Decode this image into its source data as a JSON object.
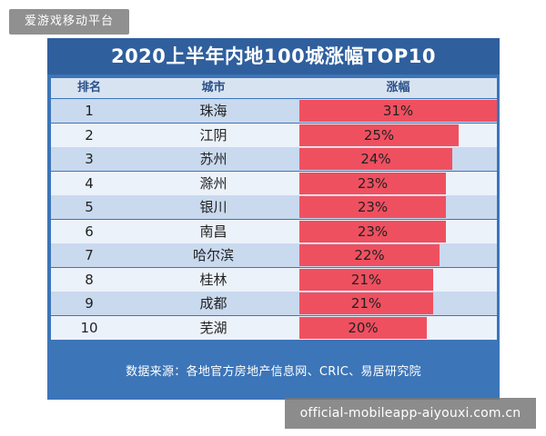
{
  "watermark": {
    "top_left": "爱游戏移动平台",
    "bottom_right": "official-mobileapp-aiyouxi.com.cn"
  },
  "chart_data": {
    "type": "bar",
    "title": "2020上半年内地100城涨幅TOP10",
    "columns": [
      "排名",
      "城市",
      "涨幅"
    ],
    "categories": [
      "珠海",
      "江阴",
      "苏州",
      "滁州",
      "银川",
      "南昌",
      "哈尔滨",
      "桂林",
      "成都",
      "芜湖"
    ],
    "ranks": [
      "1",
      "2",
      "3",
      "4",
      "5",
      "6",
      "7",
      "8",
      "9",
      "10"
    ],
    "values": [
      31,
      25,
      24,
      23,
      23,
      23,
      22,
      21,
      21,
      20
    ],
    "value_labels": [
      "31%",
      "25%",
      "24%",
      "23%",
      "23%",
      "23%",
      "22%",
      "21%",
      "21%",
      "20%"
    ],
    "source": "数据来源：各地官方房地产信息网、CRIC、易居研究院"
  },
  "colors": {
    "card": "#3c75b8",
    "title_bar": "#2f5f9d",
    "bar": "#ef5060",
    "row_odd": "#c9d9ee",
    "row_even": "#ecf2fa"
  }
}
